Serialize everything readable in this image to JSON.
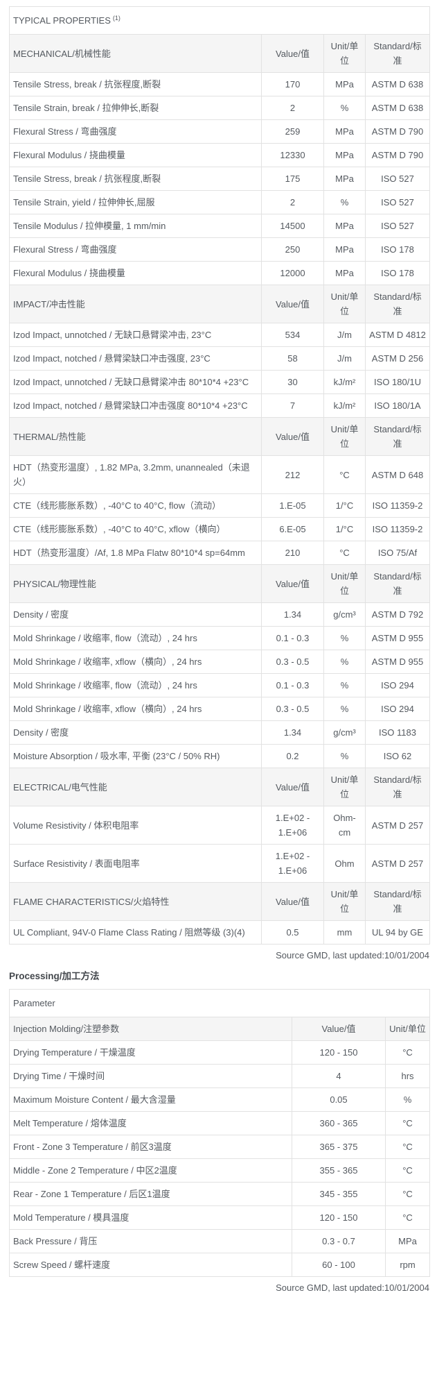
{
  "page": {
    "source_note_1": "Source GMD, last updated:10/01/2004",
    "source_note_2": "Source GMD, last updated:10/01/2004",
    "processing_heading": "Processing/加工方法"
  },
  "properties_table": {
    "title": "TYPICAL PROPERTIES",
    "title_sup": "(1)",
    "value_header": "Value/值",
    "unit_header": "Unit/单位",
    "standard_header": "Standard/标准",
    "sections": [
      {
        "name": "MECHANICAL/机械性能",
        "rows": [
          {
            "property": "Tensile Stress, break / 抗张程度,断裂",
            "value": "170",
            "unit": "MPa",
            "standard": "ASTM D 638"
          },
          {
            "property": "Tensile Strain, break / 拉伸伸长,断裂",
            "value": "2",
            "unit": "%",
            "standard": "ASTM D 638"
          },
          {
            "property": "Flexural Stress / 弯曲强度",
            "value": "259",
            "unit": "MPa",
            "standard": "ASTM D 790"
          },
          {
            "property": "Flexural Modulus / 挠曲模量",
            "value": "12330",
            "unit": "MPa",
            "standard": "ASTM D 790"
          },
          {
            "property": "Tensile Stress, break / 抗张程度,断裂",
            "value": "175",
            "unit": "MPa",
            "standard": "ISO 527"
          },
          {
            "property": "Tensile Strain, yield / 拉伸伸长,屈服",
            "value": "2",
            "unit": "%",
            "standard": "ISO 527"
          },
          {
            "property": "Tensile Modulus / 拉伸模量, 1 mm/min",
            "value": "14500",
            "unit": "MPa",
            "standard": "ISO 527"
          },
          {
            "property": "Flexural Stress / 弯曲强度",
            "value": "250",
            "unit": "MPa",
            "standard": "ISO 178"
          },
          {
            "property": "Flexural Modulus / 挠曲模量",
            "value": "12000",
            "unit": "MPa",
            "standard": "ISO 178"
          }
        ]
      },
      {
        "name": "IMPACT/冲击性能",
        "rows": [
          {
            "property": "Izod Impact, unnotched / 无缺口悬臂梁冲击, 23°C",
            "value": "534",
            "unit": "J/m",
            "standard": "ASTM D 4812"
          },
          {
            "property": "Izod Impact, notched / 悬臂梁缺口冲击强度, 23°C",
            "value": "58",
            "unit": "J/m",
            "standard": "ASTM D 256"
          },
          {
            "property": "Izod Impact, unnotched / 无缺口悬臂梁冲击 80*10*4 +23°C",
            "value": "30",
            "unit": "kJ/m²",
            "standard": "ISO 180/1U"
          },
          {
            "property": "Izod Impact, notched / 悬臂梁缺口冲击强度 80*10*4 +23°C",
            "value": "7",
            "unit": "kJ/m²",
            "standard": "ISO 180/1A"
          }
        ]
      },
      {
        "name": "THERMAL/热性能",
        "rows": [
          {
            "property": "HDT（热变形温度）, 1.82 MPa, 3.2mm, unannealed（未退火）",
            "value": "212",
            "unit": "°C",
            "standard": "ASTM D 648"
          },
          {
            "property": "CTE（线形膨胀系数）, -40°C to 40°C, flow（流动）",
            "value": "1.E-05",
            "unit": "1/°C",
            "standard": "ISO 11359-2"
          },
          {
            "property": "CTE（线形膨胀系数）, -40°C to 40°C, xflow（横向）",
            "value": "6.E-05",
            "unit": "1/°C",
            "standard": "ISO 11359-2"
          },
          {
            "property": "HDT（热变形温度）/Af, 1.8 MPa Flatw 80*10*4 sp=64mm",
            "value": "210",
            "unit": "°C",
            "standard": "ISO 75/Af"
          }
        ]
      },
      {
        "name": "PHYSICAL/物理性能",
        "rows": [
          {
            "property": "Density / 密度",
            "value": "1.34",
            "unit": "g/cm³",
            "standard": "ASTM D 792"
          },
          {
            "property": "Mold Shrinkage / 收缩率, flow（流动）, 24 hrs",
            "value": "0.1 - 0.3",
            "unit": "%",
            "standard": "ASTM D 955"
          },
          {
            "property": "Mold Shrinkage / 收缩率, xflow（横向）, 24 hrs",
            "value": "0.3 - 0.5",
            "unit": "%",
            "standard": "ASTM D 955"
          },
          {
            "property": "Mold Shrinkage / 收缩率, flow（流动）, 24 hrs",
            "value": "0.1 - 0.3",
            "unit": "%",
            "standard": "ISO 294"
          },
          {
            "property": "Mold Shrinkage / 收缩率, xflow（横向）, 24 hrs",
            "value": "0.3 - 0.5",
            "unit": "%",
            "standard": "ISO 294"
          },
          {
            "property": "Density / 密度",
            "value": "1.34",
            "unit": "g/cm³",
            "standard": "ISO 1183"
          },
          {
            "property": "Moisture Absorption / 吸水率, 平衡 (23°C / 50% RH)",
            "value": "0.2",
            "unit": "%",
            "standard": "ISO 62"
          }
        ]
      },
      {
        "name": "ELECTRICAL/电气性能",
        "rows": [
          {
            "property": "Volume Resistivity / 体积电阻率",
            "value": "1.E+02 - 1.E+06",
            "unit": "Ohm-cm",
            "standard": "ASTM D 257"
          },
          {
            "property": "Surface Resistivity / 表面电阻率",
            "value": "1.E+02 - 1.E+06",
            "unit": "Ohm",
            "standard": "ASTM D 257"
          }
        ]
      },
      {
        "name": "FLAME CHARACTERISTICS/火焰特性",
        "rows": [
          {
            "property": "UL Compliant, 94V-0 Flame Class Rating / 阻燃等级 (3)(4)",
            "value": "0.5",
            "unit": "mm",
            "standard": "UL 94 by GE"
          }
        ]
      }
    ]
  },
  "processing_table": {
    "title": "Parameter",
    "section": "Injection Molding/注塑参数",
    "value_header": "Value/值",
    "unit_header": "Unit/单位",
    "rows": [
      {
        "parameter": "Drying Temperature / 干燥温度",
        "value": "120 - 150",
        "unit": "°C"
      },
      {
        "parameter": "Drying Time / 干燥时间",
        "value": "4",
        "unit": "hrs"
      },
      {
        "parameter": "Maximum Moisture Content / 最大含湿量",
        "value": "0.05",
        "unit": "%"
      },
      {
        "parameter": "Melt Temperature / 熔体温度",
        "value": "360 - 365",
        "unit": "°C"
      },
      {
        "parameter": "Front - Zone 3 Temperature / 前区3温度",
        "value": "365 - 375",
        "unit": "°C"
      },
      {
        "parameter": "Middle - Zone 2 Temperature / 中区2温度",
        "value": "355 - 365",
        "unit": "°C"
      },
      {
        "parameter": "Rear - Zone 1 Temperature / 后区1温度",
        "value": "345 - 355",
        "unit": "°C"
      },
      {
        "parameter": "Mold Temperature / 模具温度",
        "value": "120 - 150",
        "unit": "°C"
      },
      {
        "parameter": "Back Pressure / 背压",
        "value": "0.3 - 0.7",
        "unit": "MPa"
      },
      {
        "parameter": "Screw Speed / 螺杆速度",
        "value": "60 - 100",
        "unit": "rpm"
      }
    ]
  },
  "colors": {
    "text": "#54595f",
    "section_row_bg": "#f5f5f5",
    "inner_border": "#e2e2e2",
    "outer_border": "#7d7d7d"
  }
}
